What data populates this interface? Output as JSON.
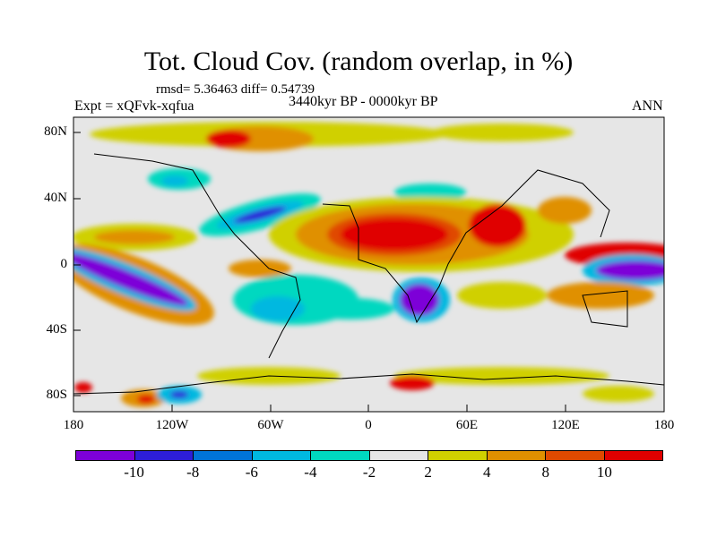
{
  "title": "Tot. Cloud Cov. (random overlap, in %)",
  "stats": "rmsd= 5.36463 diff= 0.54739",
  "experiment": "Expt = xQFvk-xqfua",
  "period": "3440kyr BP - 0000kyr BP",
  "season": "ANN",
  "map": {
    "lat_labels": [
      "80N",
      "40N",
      "0",
      "40S",
      "80S"
    ],
    "lon_labels": [
      "180",
      "120W",
      "60W",
      "0",
      "60E",
      "120E",
      "180"
    ]
  },
  "colorbar": {
    "colors": [
      "#7d00d8",
      "#2d1ed8",
      "#0074d8",
      "#00b8e0",
      "#00d8c0",
      "#e6e6e6",
      "#d0d000",
      "#e09000",
      "#e04a00",
      "#e00000"
    ],
    "labels": [
      "-10",
      "-8",
      "-6",
      "-4",
      "-2",
      "2",
      "4",
      "8",
      "10"
    ]
  }
}
